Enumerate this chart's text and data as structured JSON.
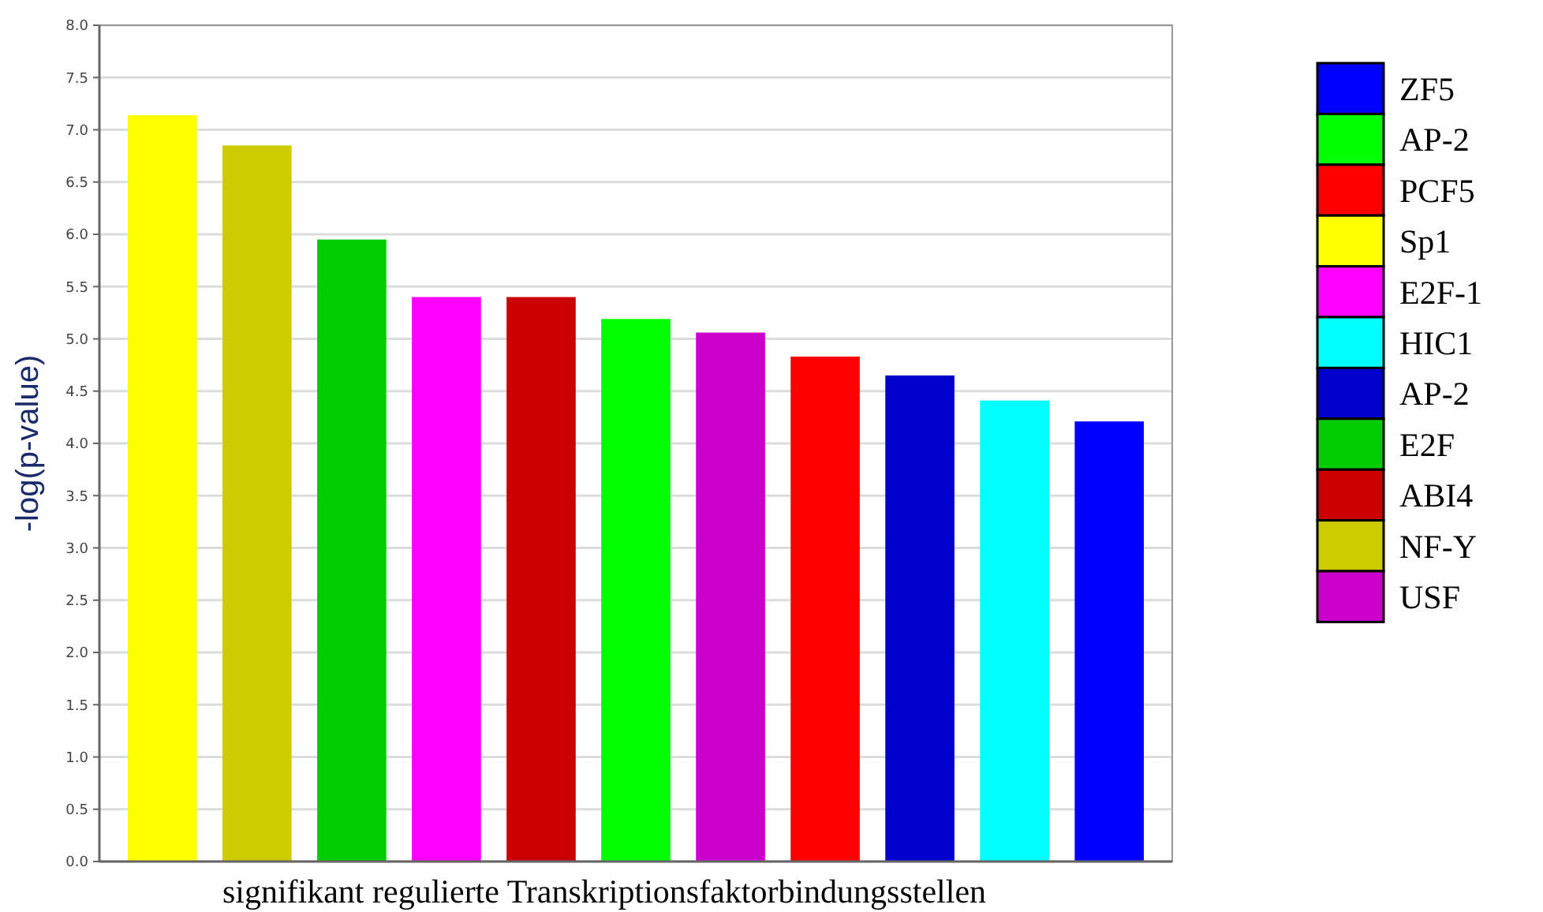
{
  "chart_data": {
    "type": "bar",
    "xlabel": "signifikant regulierte Transkriptionsfaktorbindungsstellen",
    "ylabel": "-log(p-value)",
    "categories": [
      null,
      null,
      null,
      null,
      null,
      null,
      null,
      null,
      null,
      null,
      null
    ],
    "ylim": [
      0,
      8
    ],
    "yticks": [
      {
        "value": 0,
        "label": "0.0"
      },
      {
        "value": 0.5,
        "label": "0.5"
      },
      {
        "value": 1,
        "label": "1.0"
      },
      {
        "value": 1.5,
        "label": "1.5"
      },
      {
        "value": 2,
        "label": "2.0"
      },
      {
        "value": 2.5,
        "label": "2.5"
      },
      {
        "value": 3,
        "label": "3.0"
      },
      {
        "value": 3.5,
        "label": "3.5"
      },
      {
        "value": 4,
        "label": "4.0"
      },
      {
        "value": 4.5,
        "label": "4.5"
      },
      {
        "value": 5,
        "label": "5.0"
      },
      {
        "value": 5.5,
        "label": "5.5"
      },
      {
        "value": 6,
        "label": "6.0"
      },
      {
        "value": 6.5,
        "label": "6.5"
      },
      {
        "value": 7,
        "label": "7.0"
      },
      {
        "value": 7.5,
        "label": "7.5"
      },
      {
        "value": 8,
        "label": "8.0"
      }
    ],
    "grid": "y",
    "legend": "right",
    "series": [
      {
        "name": "ZF5",
        "color": "#0000ff",
        "values": [
          null,
          null,
          null,
          null,
          null,
          null,
          null,
          null,
          null,
          null,
          4.21
        ]
      },
      {
        "name": "AP-2",
        "color": "#00ff00",
        "values": [
          null,
          null,
          null,
          null,
          null,
          5.19,
          null,
          null,
          null,
          null,
          null
        ]
      },
      {
        "name": "PCF5",
        "color": "#ff0000",
        "values": [
          null,
          null,
          null,
          null,
          null,
          null,
          null,
          4.83,
          null,
          null,
          null
        ]
      },
      {
        "name": "Sp1",
        "color": "#ffff00",
        "values": [
          7.14,
          null,
          null,
          null,
          null,
          null,
          null,
          null,
          null,
          null,
          null
        ]
      },
      {
        "name": "E2F-1",
        "color": "#ff00ff",
        "values": [
          null,
          null,
          null,
          5.4,
          null,
          null,
          null,
          null,
          null,
          null,
          null
        ]
      },
      {
        "name": "HIC1",
        "color": "#00ffff",
        "values": [
          null,
          null,
          null,
          null,
          null,
          null,
          null,
          null,
          null,
          4.41,
          null
        ]
      },
      {
        "name": "AP-2",
        "color": "#0000cc",
        "values": [
          null,
          null,
          null,
          null,
          null,
          null,
          null,
          null,
          4.65,
          null,
          null
        ]
      },
      {
        "name": "E2F",
        "color": "#00cc00",
        "values": [
          null,
          null,
          5.95,
          null,
          null,
          null,
          null,
          null,
          null,
          null,
          null
        ]
      },
      {
        "name": "ABI4",
        "color": "#cc0000",
        "values": [
          null,
          null,
          null,
          null,
          5.4,
          null,
          null,
          null,
          null,
          null,
          null
        ]
      },
      {
        "name": "NF-Y",
        "color": "#cccc00",
        "values": [
          null,
          6.85,
          null,
          null,
          null,
          null,
          null,
          null,
          null,
          null,
          null
        ]
      },
      {
        "name": "USF",
        "color": "#cc00cc",
        "values": [
          null,
          null,
          null,
          null,
          null,
          null,
          5.06,
          null,
          null,
          null,
          null
        ]
      }
    ]
  }
}
